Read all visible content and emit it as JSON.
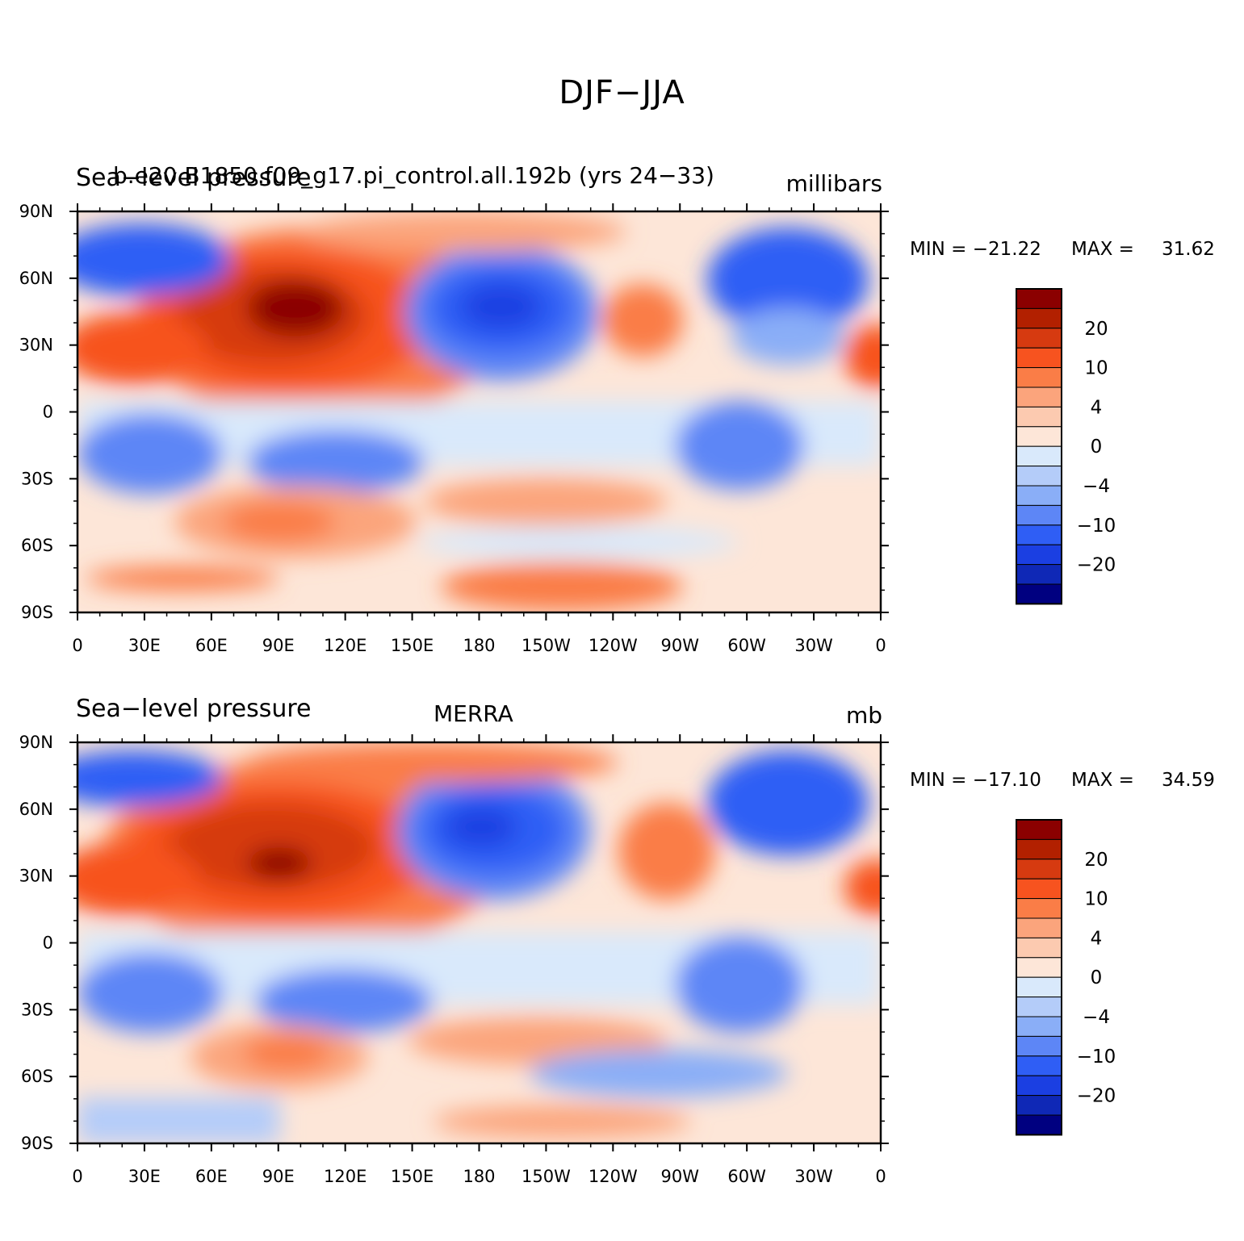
{
  "title": "DJF−JJA",
  "panels": [
    {
      "id": "model",
      "left_title": "Sea−level pressure",
      "center_title": "b.e20.B1850.f09_g17.pi_control.all.192b (yrs 24−33)",
      "units": "millibars",
      "stats": {
        "min_label": "MIN = −21.22",
        "max_label": "MAX =",
        "max_value": "31.62"
      }
    },
    {
      "id": "obs",
      "left_title": "Sea−level pressure",
      "center_title": "MERRA",
      "units": "mb",
      "stats": {
        "min_label": "MIN = −17.10",
        "max_label": "MAX =",
        "max_value": "34.59"
      }
    }
  ],
  "axes": {
    "lat_labels": [
      "90N",
      "60N",
      "30N",
      "0",
      "30S",
      "60S",
      "90S"
    ],
    "lon_labels": [
      "0",
      "30E",
      "60E",
      "90E",
      "120E",
      "150E",
      "180",
      "150W",
      "120W",
      "90W",
      "60W",
      "30W",
      "0"
    ]
  },
  "colorbar": {
    "colors": [
      "#8b0000",
      "#b22000",
      "#d63a10",
      "#f7531f",
      "#fa7d47",
      "#fba47c",
      "#fccab0",
      "#fde6d8",
      "#d9e9fb",
      "#b4ccf9",
      "#8aaef7",
      "#5d86f6",
      "#2f5ef5",
      "#1b3fe2",
      "#0f28b6",
      "#000080"
    ],
    "labels": [
      "20",
      "10",
      "4",
      "0",
      "−4",
      "−10",
      "−20"
    ]
  }
}
